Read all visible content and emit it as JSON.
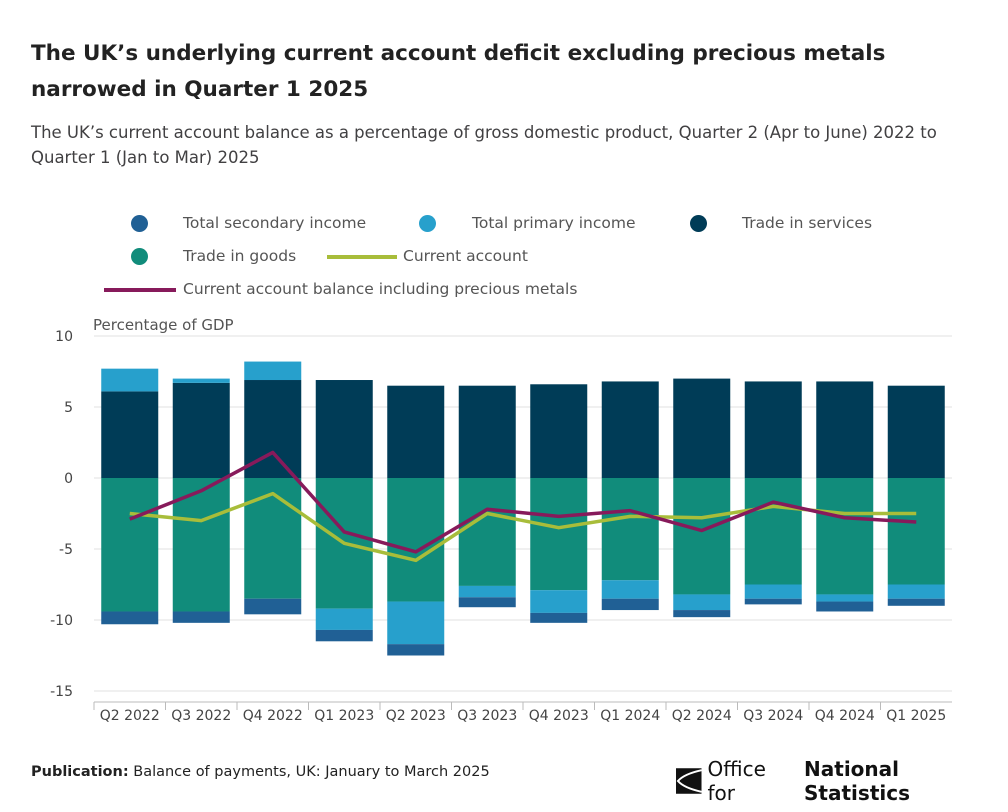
{
  "title": "The UK’s underlying current account deficit excluding precious metals narrowed in Quarter 1 2025",
  "subtitle": "The UK’s current account balance as a percentage of gross domestic product, Quarter 2 (Apr to June) 2022 to Quarter 1 (Jan to Mar) 2025",
  "footer": {
    "label": "Publication:",
    "text": " Balance of payments, UK: January to March 2025"
  },
  "logo": {
    "text1": "Office for",
    "text2": "National Statistics"
  },
  "chart_data": {
    "type": "bar",
    "stacked": true,
    "ylabel": "Percentage of GDP",
    "ylim": [
      -15,
      10
    ],
    "yticks": [
      10,
      5,
      0,
      -5,
      -10,
      -15
    ],
    "grid": true,
    "legend_position": "top",
    "categories": [
      "Q2 2022",
      "Q3 2022",
      "Q4 2022",
      "Q1 2023",
      "Q2 2023",
      "Q3 2023",
      "Q4 2023",
      "Q1 2024",
      "Q2 2024",
      "Q3 2024",
      "Q4 2024",
      "Q1 2025"
    ],
    "series": [
      {
        "name": "Trade in services",
        "kind": "bar",
        "color": "#003c57",
        "values": [
          6.1,
          6.7,
          6.9,
          6.9,
          6.5,
          6.5,
          6.6,
          6.8,
          7.0,
          6.8,
          6.8,
          6.5
        ]
      },
      {
        "name": "Trade in goods",
        "kind": "bar",
        "color": "#118c7b",
        "values": [
          -9.4,
          -9.4,
          -8.5,
          -9.2,
          -8.7,
          -7.6,
          -7.9,
          -7.2,
          -8.2,
          -7.5,
          -8.2,
          -7.5
        ]
      },
      {
        "name": "Total primary income",
        "kind": "bar",
        "color": "#27a0cc",
        "values": [
          1.6,
          0.3,
          1.3,
          -1.5,
          -3.0,
          -0.8,
          -1.6,
          -1.3,
          -1.1,
          -1.0,
          -0.5,
          -1.0
        ]
      },
      {
        "name": "Total secondary income",
        "kind": "bar",
        "color": "#206095",
        "values": [
          -0.9,
          -0.8,
          -1.1,
          -0.8,
          -0.8,
          -0.7,
          -0.7,
          -0.8,
          -0.5,
          -0.4,
          -0.7,
          -0.5
        ]
      },
      {
        "name": "Current account",
        "kind": "line",
        "color": "#a8bd3a",
        "values": [
          -2.5,
          -3.0,
          -1.1,
          -4.6,
          -5.8,
          -2.5,
          -3.5,
          -2.7,
          -2.8,
          -2.0,
          -2.5,
          -2.5
        ]
      },
      {
        "name": "Current account balance including precious metals",
        "kind": "line",
        "color": "#871a5b",
        "values": [
          -2.9,
          -0.9,
          1.8,
          -3.8,
          -5.2,
          -2.2,
          -2.7,
          -2.3,
          -3.7,
          -1.7,
          -2.8,
          -3.1
        ]
      }
    ]
  }
}
